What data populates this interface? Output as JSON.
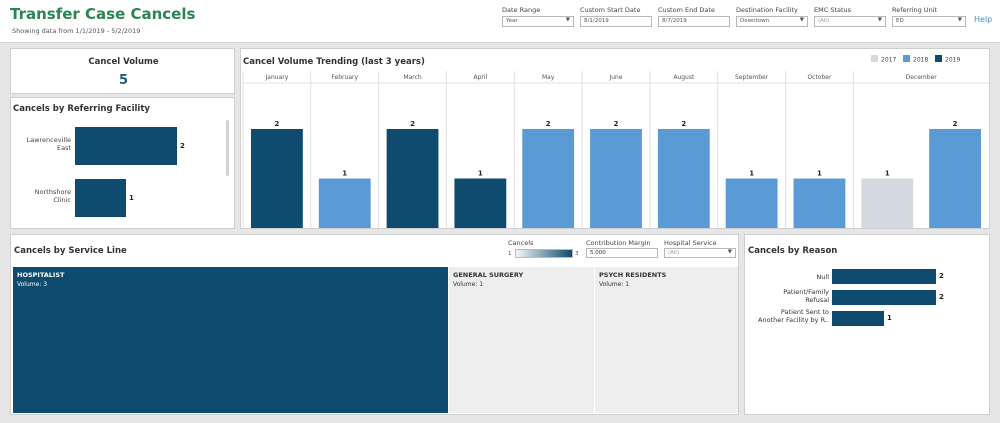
{
  "header": {
    "title": "Transfer Case Cancels",
    "subtitle": "Showing data from 1/1/2019 - 5/2/2019",
    "help": "Help",
    "filters": [
      {
        "label": "Date Range",
        "value": "Year",
        "dropdown": true
      },
      {
        "label": "Custom Start Date",
        "value": "8/1/2019",
        "dropdown": false
      },
      {
        "label": "Custom End Date",
        "value": "8/7/2019",
        "dropdown": false
      },
      {
        "label": "Destination Facility",
        "value": "Downtown",
        "dropdown": true
      },
      {
        "label": "EMC Status",
        "value": "(All)",
        "dropdown": true
      },
      {
        "label": "Referring Unit",
        "value": "ED",
        "dropdown": true
      }
    ]
  },
  "kpi": {
    "title": "Cancel Volume",
    "value": "5"
  },
  "referring": {
    "title": "Cancels by Referring Facility",
    "items": [
      {
        "label_lines": [
          "Lawrenceville",
          "East"
        ],
        "value": 2
      },
      {
        "label_lines": [
          "Northshore",
          "Clinic"
        ],
        "value": 1
      }
    ]
  },
  "trend": {
    "title": "Cancel Volume Trending (last 3 years)"
  },
  "chart_data": {
    "type": "bar",
    "title": "Cancel Volume Trending (last 3 years)",
    "legend": [
      "2017",
      "2018",
      "2019"
    ],
    "legend_position": "top-right",
    "colors": {
      "2017": "#d4d8df",
      "2018": "#5a9bd5",
      "2019": "#0e4b6e"
    },
    "months": [
      {
        "month": "January",
        "bars": [
          {
            "year": "2019",
            "value": 2
          }
        ]
      },
      {
        "month": "February",
        "bars": [
          {
            "year": "2018",
            "value": 1
          }
        ]
      },
      {
        "month": "March",
        "bars": [
          {
            "year": "2019",
            "value": 2
          }
        ]
      },
      {
        "month": "April",
        "bars": [
          {
            "year": "2019",
            "value": 1
          }
        ]
      },
      {
        "month": "May",
        "bars": [
          {
            "year": "2018",
            "value": 2
          }
        ]
      },
      {
        "month": "June",
        "bars": [
          {
            "year": "2018",
            "value": 2
          }
        ]
      },
      {
        "month": "August",
        "bars": [
          {
            "year": "2018",
            "value": 2
          }
        ]
      },
      {
        "month": "September",
        "bars": [
          {
            "year": "2018",
            "value": 1
          }
        ]
      },
      {
        "month": "October",
        "bars": [
          {
            "year": "2018",
            "value": 1
          }
        ]
      },
      {
        "month": "December",
        "bars": [
          {
            "year": "2017",
            "value": 1
          },
          {
            "year": "2018",
            "value": 2
          }
        ]
      }
    ],
    "ylim": [
      0,
      2
    ]
  },
  "service": {
    "title": "Cancels by Service Line",
    "legend_title": "Cancels",
    "legend_min": "1",
    "legend_max": "3",
    "contribution_label": "Contribution Margin",
    "contribution_value": "5,000",
    "hospital_service_label": "Hospital Service",
    "hospital_service_value": "(All)",
    "cells": [
      {
        "name": "HOSPITALIST",
        "volume_text": "Volume:  3",
        "volume": 3
      },
      {
        "name": "GENERAL SURGERY",
        "volume_text": "Volume:  1",
        "volume": 1
      },
      {
        "name": "PSYCH RESIDENTS",
        "volume_text": "Volume:  1",
        "volume": 1
      }
    ]
  },
  "reason": {
    "title": "Cancels by Reason",
    "items": [
      {
        "label_lines": [
          "Null"
        ],
        "value": 2
      },
      {
        "label_lines": [
          "Patient/Family",
          "Refusal"
        ],
        "value": 2
      },
      {
        "label_lines": [
          "Patient Sent to",
          "Another Facility by R.."
        ],
        "value": 1
      }
    ]
  }
}
